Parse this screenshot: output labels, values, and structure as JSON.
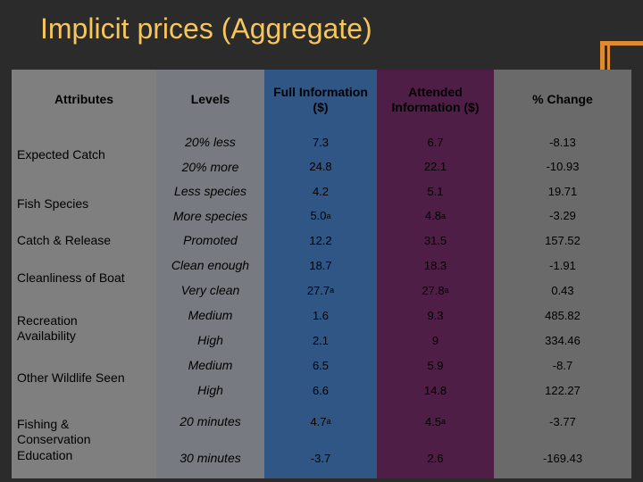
{
  "title": "Implicit prices (Aggregate)",
  "headers": {
    "attributes": "Attributes",
    "levels": "Levels",
    "full_info": "Full Information\n($)",
    "attended_info": "Attended\nInformation ($)",
    "pct_change": "% Change"
  },
  "attributes": [
    "Expected Catch",
    "Fish Species",
    "Catch & Release",
    "Cleanliness of Boat",
    "Recreation\nAvailability",
    "Other Wildlife Seen",
    "Fishing &\nConservation\nEducation"
  ],
  "rows": [
    {
      "level": "20% less",
      "full": "7.3",
      "attended": "6.7",
      "change": "-8.13"
    },
    {
      "level": "20% more",
      "full": "24.8",
      "attended": "22.1",
      "change": "-10.93"
    },
    {
      "level": "Less species",
      "full": "4.2",
      "attended": "5.1",
      "change": "19.71"
    },
    {
      "level": "More species",
      "full": "5.0",
      "full_sup": "a",
      "attended": "4.8",
      "attended_sup": "a",
      "change": "-3.29"
    },
    {
      "level": "Promoted",
      "full": "12.2",
      "attended": "31.5",
      "change": "157.52"
    },
    {
      "level": "Clean enough",
      "full": "18.7",
      "attended": "18.3",
      "change": "-1.91"
    },
    {
      "level": "Very clean",
      "full": "27.7",
      "full_sup": "a",
      "attended": "27.8",
      "attended_sup": "a",
      "change": "0.43"
    },
    {
      "level": "Medium",
      "full": "1.6",
      "attended": "9.3",
      "change": "485.82"
    },
    {
      "level": "High",
      "full": "2.1",
      "attended": "9",
      "change": "334.46"
    },
    {
      "level": "Medium",
      "full": "6.5",
      "attended": "5.9",
      "change": "-8.7"
    },
    {
      "level": "High",
      "full": "6.6",
      "attended": "14.8",
      "change": "122.27"
    },
    {
      "level": "20 minutes",
      "full": "4.7",
      "full_sup": "a",
      "attended": "4.5",
      "attended_sup": "a",
      "change": "-3.77"
    },
    {
      "level": "30 minutes",
      "full": "-3.7",
      "attended": "2.6",
      "change": "-169.43"
    }
  ]
}
